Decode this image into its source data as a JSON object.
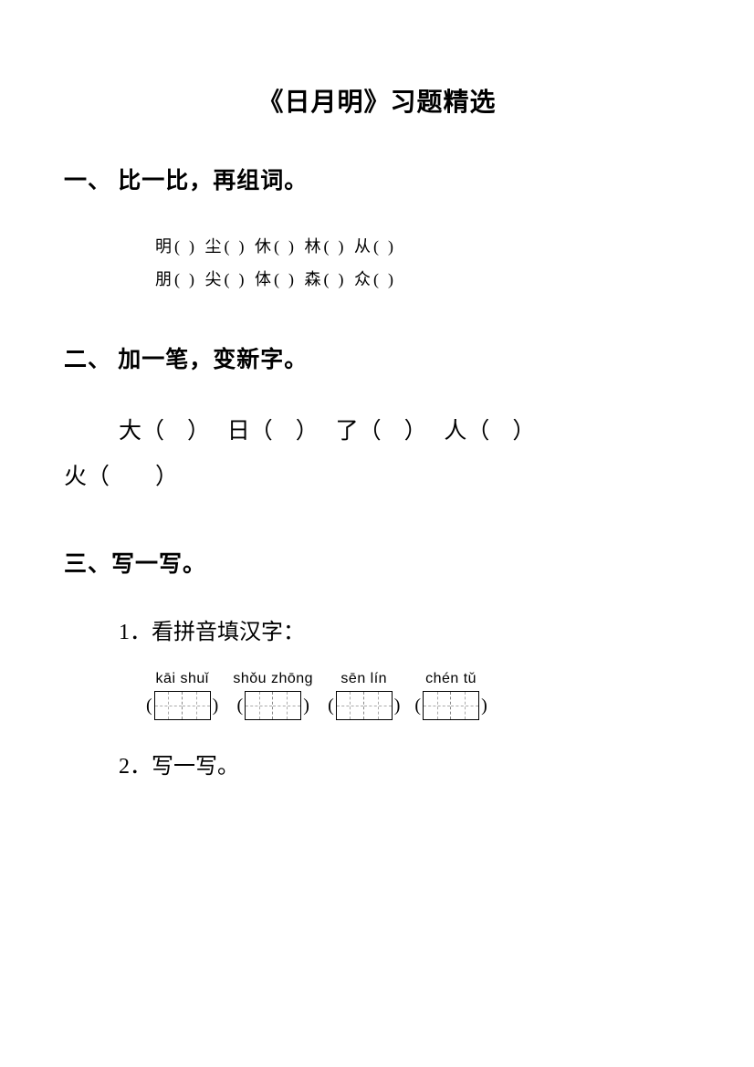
{
  "title": "《日月明》习题精选",
  "sections": {
    "one": {
      "heading": "一、 比一比，再组词。",
      "rows": [
        [
          "明",
          "尘",
          "休",
          "林",
          "从"
        ],
        [
          "朋",
          "尖",
          "体",
          "森",
          "众"
        ]
      ]
    },
    "two": {
      "heading": "二、 加一笔，变新字。",
      "items": [
        "大",
        "日",
        "了",
        "人",
        "火"
      ]
    },
    "three": {
      "heading": "三、写一写。",
      "sub1": {
        "label": "1．看拼音填汉字：",
        "pinyin": [
          "kāi shuǐ",
          "shǒu zhōng",
          "sēn lín",
          "chén tǔ"
        ]
      },
      "sub2": {
        "label": "2．写一写。"
      }
    }
  },
  "colors": {
    "text": "#000000",
    "background": "#ffffff",
    "dash": "#aaaaaa"
  },
  "fonts": {
    "body": "SimSun",
    "kai": "KaiTi",
    "pinyin": "Arial"
  }
}
